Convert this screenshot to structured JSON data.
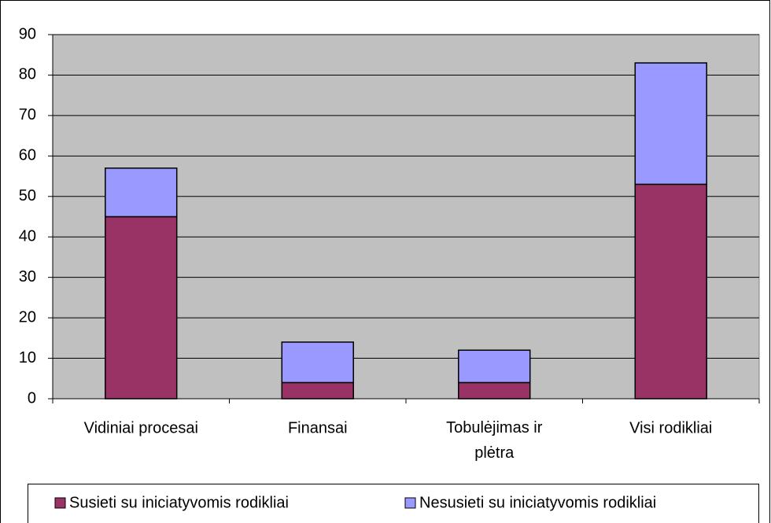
{
  "chart_data": {
    "type": "stacked_bar",
    "categories": [
      "Vidiniai procesai",
      "Finansai",
      "Tobulėjimas ir plėtra",
      "Visi rodikliai"
    ],
    "series": [
      {
        "name": "Susieti su iniciatyvomis rodikliai",
        "color": "#993366",
        "values": [
          45,
          4,
          4,
          53
        ]
      },
      {
        "name": "Nesusieti su iniciatyvomis rodikliai",
        "color": "#9999ff",
        "values": [
          12,
          10,
          8,
          30
        ]
      }
    ],
    "ylim": [
      0,
      90
    ],
    "yticks": [
      0,
      10,
      20,
      30,
      40,
      50,
      60,
      70,
      80,
      90
    ],
    "grid": true,
    "legend": "bottom"
  }
}
